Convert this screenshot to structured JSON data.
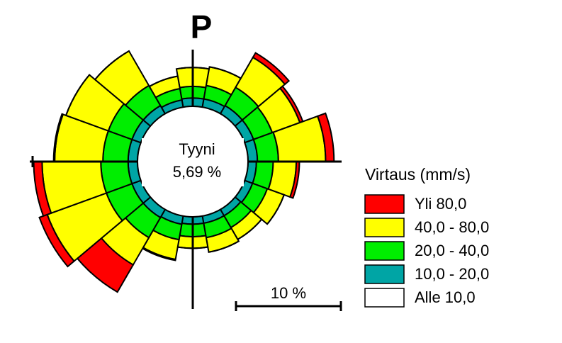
{
  "chart_data": {
    "type": "rose",
    "title": "P",
    "x": [
      0,
      20,
      40,
      60,
      80,
      100,
      120,
      140,
      160,
      180,
      200,
      220,
      240,
      260,
      280,
      300,
      320,
      340
    ],
    "series": [
      {
        "name": "Alle 10,0",
        "color": "#ffffff",
        "values": [
          0,
          0,
          0,
          0,
          0,
          0,
          0,
          0,
          0,
          0,
          0,
          0,
          0,
          0,
          0,
          0,
          0,
          0
        ]
      },
      {
        "name": "10,0 - 20,0",
        "color": "#00a5a5",
        "values": [
          0.8,
          0.8,
          0.9,
          0.9,
          0.9,
          0.8,
          0.8,
          0.7,
          0.7,
          0.7,
          0.8,
          0.9,
          0.9,
          0.9,
          0.9,
          0.9,
          0.9,
          0.7
        ]
      },
      {
        "name": "20,0 - 40,0",
        "color": "#00ee00",
        "values": [
          1.1,
          1.3,
          2.0,
          1.9,
          2.0,
          1.6,
          1.5,
          1.3,
          1.4,
          1.2,
          1.5,
          2.2,
          2.6,
          2.6,
          2.4,
          2.4,
          2.2,
          1.1
        ]
      },
      {
        "name": "40,0 - 80,0",
        "color": "#ffff00",
        "values": [
          1.8,
          1.8,
          3.3,
          2.8,
          4.5,
          2.2,
          1.7,
          1.3,
          1.4,
          1.1,
          1.9,
          3.0,
          6.0,
          5.6,
          4.6,
          4.3,
          3.8,
          1.2
        ]
      },
      {
        "name": "Yli 80,0",
        "color": "#ff0000",
        "values": [
          0,
          0,
          0.5,
          0.3,
          0.8,
          0.3,
          0,
          0,
          0,
          0,
          0.1,
          3.0,
          0.8,
          0.8,
          0.1,
          0,
          0,
          0
        ]
      }
    ],
    "legend_title": "Virtaus (mm/s)",
    "calm": {
      "label": "Tyyni",
      "value": 5.69,
      "value_label": "5,69 %"
    },
    "scale": {
      "value": 10,
      "label": "10 %"
    }
  }
}
